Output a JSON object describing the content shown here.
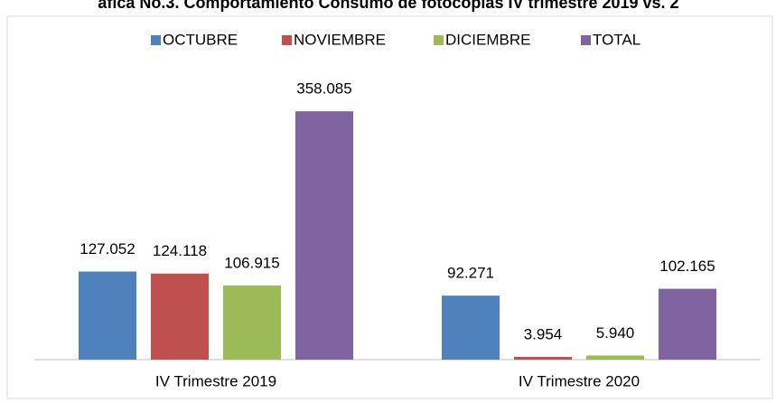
{
  "chart_data": {
    "type": "bar",
    "title": "áfica No.3. Comportamiento  Consumo de fotocopias IV trimestre 2019 vs. 2",
    "categories": [
      "IV Trimestre 2019",
      "IV Trimestre 2020"
    ],
    "series": [
      {
        "name": "OCTUBRE",
        "color": "#4f81bd",
        "values": [
          127052,
          92271
        ],
        "value_labels": [
          "127.052",
          "92.271"
        ]
      },
      {
        "name": "NOVIEMBRE",
        "color": "#c0504d",
        "values": [
          124118,
          3954
        ],
        "value_labels": [
          "124.118",
          "3.954"
        ]
      },
      {
        "name": "DICIEMBRE",
        "color": "#9bbb59",
        "values": [
          106915,
          5940
        ],
        "value_labels": [
          "106.915",
          "5.940"
        ]
      },
      {
        "name": "TOTAL",
        "color": "#8064a2",
        "values": [
          358085,
          102165
        ],
        "value_labels": [
          "358.085",
          "102.165"
        ]
      }
    ],
    "ylim": [
      0,
      400000
    ],
    "legend": "top"
  }
}
